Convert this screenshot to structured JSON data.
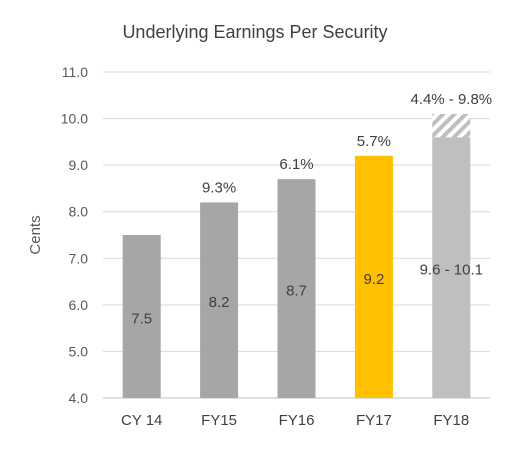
{
  "chart_data": {
    "type": "bar",
    "title": "Underlying Earnings Per Security",
    "xlabel": "",
    "ylabel": "Cents",
    "ylim": [
      4.0,
      11.0
    ],
    "yticks": [
      "4.0",
      "5.0",
      "6.0",
      "7.0",
      "8.0",
      "9.0",
      "10.0",
      "11.0"
    ],
    "grid": true,
    "categories": [
      "CY 14",
      "FY15",
      "FY16",
      "FY17",
      "FY18"
    ],
    "values": [
      7.5,
      8.2,
      8.7,
      9.2,
      9.6
    ],
    "range_top": [
      null,
      null,
      null,
      null,
      10.1
    ],
    "bar_labels": [
      "7.5",
      "8.2",
      "8.7",
      "9.2",
      "9.6 - 10.1"
    ],
    "growth_labels": [
      "",
      "9.3%",
      "6.1%",
      "5.7%",
      "4.4% - 9.8%"
    ],
    "bar_colors": [
      "#a6a6a6",
      "#a6a6a6",
      "#a6a6a6",
      "#ffc000",
      "#bfbfbf"
    ]
  }
}
